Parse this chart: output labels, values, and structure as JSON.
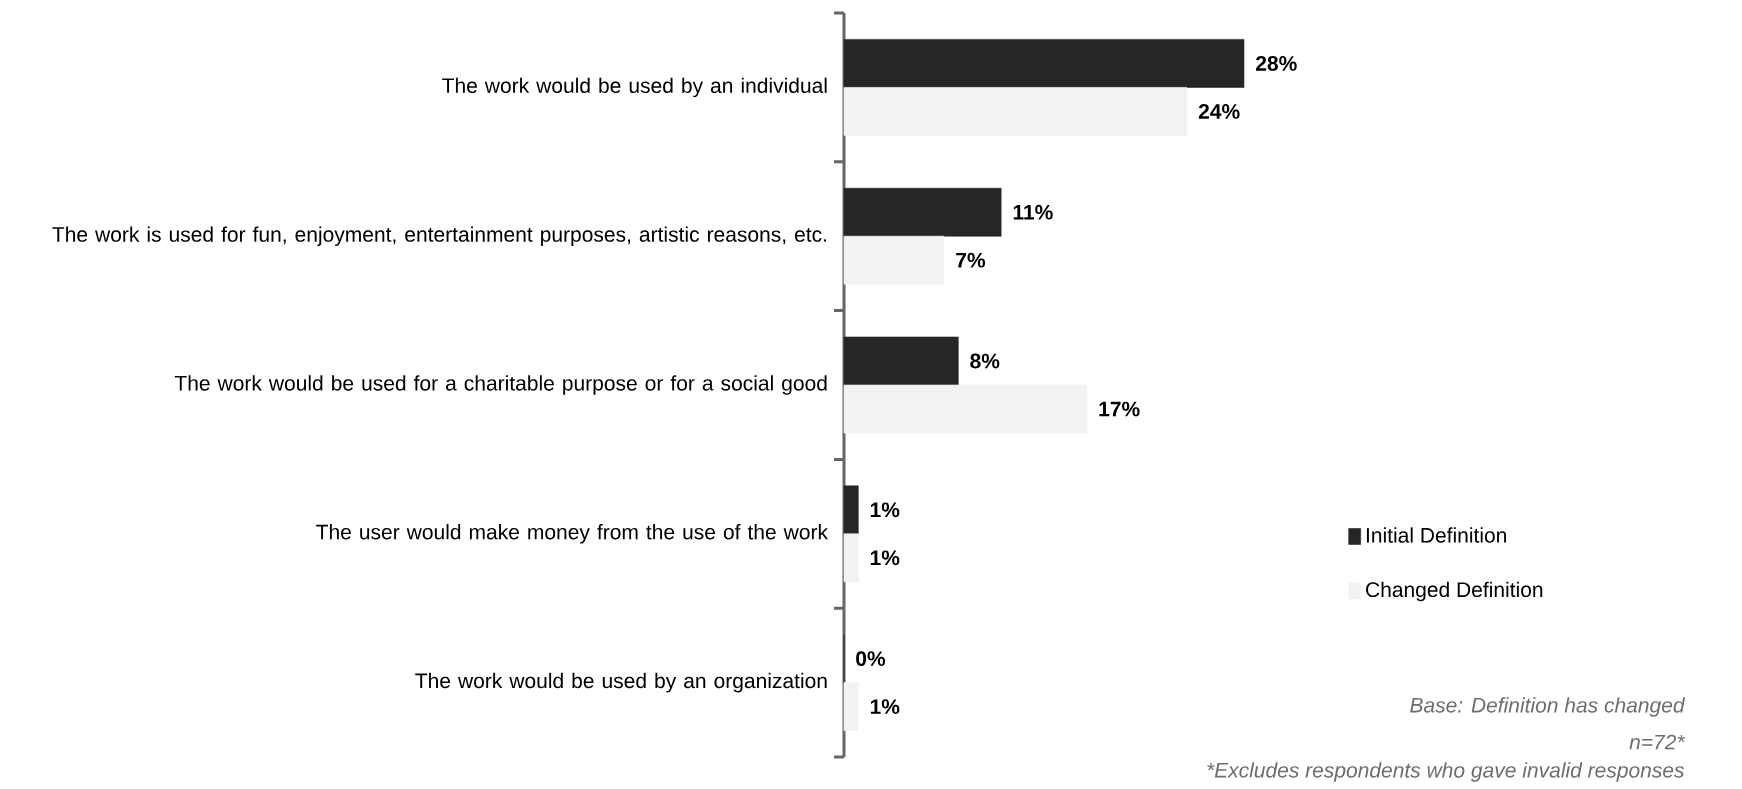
{
  "chart_data": {
    "type": "bar",
    "orientation": "horizontal",
    "categories": [
      "The work would be used by an individual",
      "The work is used for fun, enjoyment, entertainment purposes, artistic reasons, etc.",
      "The work would be used for a charitable purpose or for a social good",
      "The user would make money from the use of the work",
      "The work would be used by an organization"
    ],
    "series": [
      {
        "name": "Initial Definition",
        "color": "#262626",
        "values": [
          28,
          11,
          8,
          1,
          0
        ],
        "value_labels": [
          "28%",
          "11%",
          "8%",
          "1%",
          "0%"
        ]
      },
      {
        "name": "Changed Definition",
        "color": "#f2f2f2",
        "values": [
          24,
          7,
          17,
          1,
          1
        ],
        "value_labels": [
          "24%",
          "7%",
          "17%",
          "1%",
          "1%"
        ]
      }
    ],
    "legend": "right",
    "annotations": [
      "Base: Definition has changed",
      "n=72*",
      "*Excludes respondents who gave invalid responses"
    ]
  }
}
